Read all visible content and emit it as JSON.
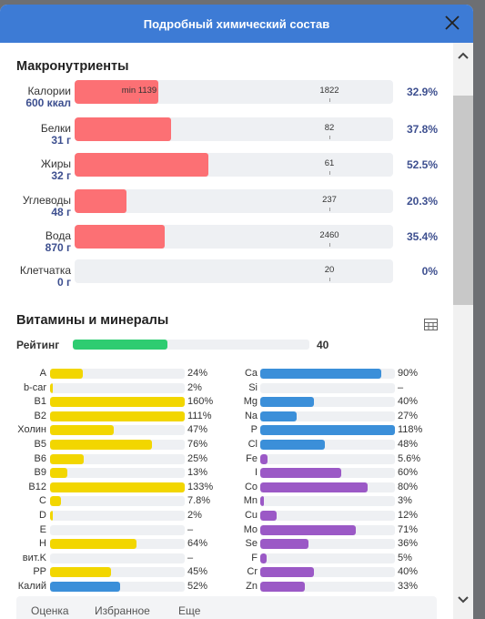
{
  "header": {
    "title": "Подробный химический состав"
  },
  "macros": {
    "title": "Макронутриенты",
    "rows": [
      {
        "name": "Калории",
        "amount": "600 ккал",
        "min": "min 1139",
        "norm": 1822,
        "percent": 32.9,
        "percent_label": "32.9%"
      },
      {
        "name": "Белки",
        "amount": "31 г",
        "norm": 82,
        "percent": 37.8,
        "percent_label": "37.8%"
      },
      {
        "name": "Жиры",
        "amount": "32 г",
        "norm": 61,
        "percent": 52.5,
        "percent_label": "52.5%"
      },
      {
        "name": "Углеводы",
        "amount": "48 г",
        "norm": 237,
        "percent": 20.3,
        "percent_label": "20.3%"
      },
      {
        "name": "Вода",
        "amount": "870 г",
        "norm": 2460,
        "percent": 35.4,
        "percent_label": "35.4%"
      },
      {
        "name": "Клетчатка",
        "amount": "0 г",
        "norm": 20,
        "percent": 0,
        "percent_label": "0%"
      }
    ]
  },
  "vitamins": {
    "title": "Витамины и минералы",
    "rating": {
      "label": "Рейтинг",
      "value": 40
    },
    "left": [
      {
        "name": "A",
        "value": 24,
        "label": "24%",
        "color": "#f2d600"
      },
      {
        "name": "b-car",
        "value": 2,
        "label": "2%",
        "color": "#f2d600"
      },
      {
        "name": "B1",
        "value": 160,
        "label": "160%",
        "color": "#f2d600"
      },
      {
        "name": "B2",
        "value": 111,
        "label": "111%",
        "color": "#f2d600"
      },
      {
        "name": "Холин",
        "value": 47,
        "label": "47%",
        "color": "#f2d600"
      },
      {
        "name": "B5",
        "value": 76,
        "label": "76%",
        "color": "#f2d600"
      },
      {
        "name": "B6",
        "value": 25,
        "label": "25%",
        "color": "#f2d600"
      },
      {
        "name": "B9",
        "value": 13,
        "label": "13%",
        "color": "#f2d600"
      },
      {
        "name": "B12",
        "value": 133,
        "label": "133%",
        "color": "#f2d600"
      },
      {
        "name": "C",
        "value": 7.8,
        "label": "7.8%",
        "color": "#f2d600"
      },
      {
        "name": "D",
        "value": 2,
        "label": "2%",
        "color": "#f2d600"
      },
      {
        "name": "E",
        "value": null,
        "label": "–",
        "color": "#f2d600"
      },
      {
        "name": "H",
        "value": 64,
        "label": "64%",
        "color": "#f2d600"
      },
      {
        "name": "вит.K",
        "value": null,
        "label": "–",
        "color": "#f2d600"
      },
      {
        "name": "PP",
        "value": 45,
        "label": "45%",
        "color": "#f2d600"
      },
      {
        "name": "Калий",
        "value": 52,
        "label": "52%",
        "color": "#3b8fd9"
      }
    ],
    "right": [
      {
        "name": "Ca",
        "value": 90,
        "label": "90%",
        "color": "#3b8fd9"
      },
      {
        "name": "Si",
        "value": null,
        "label": "–",
        "color": "#3b8fd9"
      },
      {
        "name": "Mg",
        "value": 40,
        "label": "40%",
        "color": "#3b8fd9"
      },
      {
        "name": "Na",
        "value": 27,
        "label": "27%",
        "color": "#3b8fd9"
      },
      {
        "name": "P",
        "value": 118,
        "label": "118%",
        "color": "#3b8fd9"
      },
      {
        "name": "Cl",
        "value": 48,
        "label": "48%",
        "color": "#3b8fd9"
      },
      {
        "name": "Fe",
        "value": 5.6,
        "label": "5.6%",
        "color": "#9b59c6"
      },
      {
        "name": "I",
        "value": 60,
        "label": "60%",
        "color": "#9b59c6"
      },
      {
        "name": "Co",
        "value": 80,
        "label": "80%",
        "color": "#9b59c6"
      },
      {
        "name": "Mn",
        "value": 3,
        "label": "3%",
        "color": "#9b59c6"
      },
      {
        "name": "Cu",
        "value": 12,
        "label": "12%",
        "color": "#9b59c6"
      },
      {
        "name": "Mo",
        "value": 71,
        "label": "71%",
        "color": "#9b59c6"
      },
      {
        "name": "Se",
        "value": 36,
        "label": "36%",
        "color": "#9b59c6"
      },
      {
        "name": "F",
        "value": 5,
        "label": "5%",
        "color": "#9b59c6"
      },
      {
        "name": "Cr",
        "value": 40,
        "label": "40%",
        "color": "#9b59c6"
      },
      {
        "name": "Zn",
        "value": 33,
        "label": "33%",
        "color": "#9b59c6"
      }
    ]
  },
  "footer": {
    "items": [
      "Оценка",
      "Избранное",
      "Еще"
    ]
  }
}
